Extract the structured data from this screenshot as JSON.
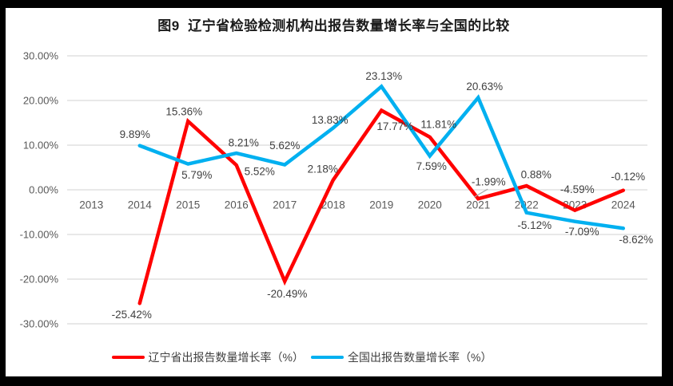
{
  "chart_data": {
    "type": "line",
    "title": "图9  辽宁省检验检测机构出报告数量增长率与全国的比较",
    "categories": [
      "2013",
      "2014",
      "2015",
      "2016",
      "2017",
      "2018",
      "2019",
      "2020",
      "2021",
      "2022",
      "2023",
      "2024"
    ],
    "xlabel": "",
    "ylabel": "",
    "ylim": [
      -30,
      30
    ],
    "y_tick_values": [
      30,
      20,
      10,
      0,
      -10,
      -20,
      -30
    ],
    "y_tick_labels": [
      "30.00%",
      "20.00%",
      "10.00%",
      "0.00%",
      "-10.00%",
      "-20.00%",
      "-30.00%"
    ],
    "grid": "horizontal-only",
    "legend_position": "bottom",
    "series": [
      {
        "name": "辽宁省出报告数量增长率（%）",
        "color": "#FF0000",
        "values": [
          null,
          -25.42,
          15.36,
          5.52,
          -20.49,
          2.18,
          17.77,
          11.81,
          -1.99,
          0.88,
          -4.59,
          -0.12
        ],
        "labels": [
          null,
          "-25.42%",
          "15.36%",
          "5.52%",
          "-20.49%",
          "2.18%",
          "17.77%",
          "11.81%",
          "-1.99%",
          "0.88%",
          "-4.59%",
          "-0.12%"
        ],
        "label_offsets": [
          null,
          [
            -10,
            14
          ],
          [
            -5,
            -12
          ],
          [
            29,
            8
          ],
          [
            3,
            16
          ],
          [
            -13,
            -14
          ],
          [
            17,
            20
          ],
          [
            11,
            -16
          ],
          [
            13,
            -21
          ],
          [
            12,
            -14
          ],
          [
            3,
            -26
          ],
          [
            6,
            -17
          ]
        ]
      },
      {
        "name": "全国出报告数量增长率（%）",
        "color": "#00B0F0",
        "values": [
          null,
          9.89,
          5.79,
          8.21,
          5.62,
          13.83,
          23.13,
          7.59,
          20.63,
          -5.12,
          -7.09,
          -8.62
        ],
        "labels": [
          null,
          "9.89%",
          "5.79%",
          "8.21%",
          "5.62%",
          "13.83%",
          "23.13%",
          "7.59%",
          "20.63%",
          "-5.12%",
          "-7.09%",
          "-8.62%"
        ],
        "label_offsets": [
          null,
          [
            -6,
            -14
          ],
          [
            11,
            14
          ],
          [
            9,
            -13
          ],
          [
            0,
            -24
          ],
          [
            -4,
            -10
          ],
          [
            3,
            -13
          ],
          [
            2,
            13
          ],
          [
            8,
            -14
          ],
          [
            10,
            16
          ],
          [
            9,
            13
          ],
          [
            16,
            14
          ]
        ]
      }
    ],
    "annotations": [
      {
        "type": "label-leader-line",
        "series": "辽宁省出报告数量增长率（%）",
        "category": "2021",
        "color": "#A6A6A6"
      }
    ],
    "colors": {
      "grid": "#D9D9D9",
      "axis_text": "#595959",
      "data_label_text": "#404040",
      "title_text": "#1A1A1A",
      "frame": "#000000",
      "background": "#FFFFFF"
    }
  }
}
